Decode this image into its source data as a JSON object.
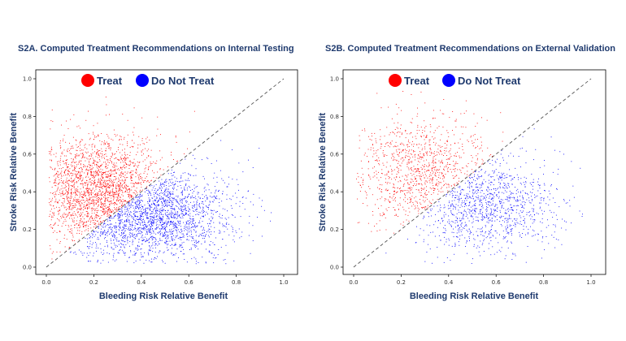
{
  "figure": {
    "panels": [
      {
        "id": "a",
        "title": "S2A. Computed Treatment Recommendations on Internal Testing"
      },
      {
        "id": "b",
        "title": "S2B. Computed Treatment Recommendations on External Validation"
      }
    ]
  },
  "chart_data": [
    {
      "type": "scatter",
      "title": "S2A. Computed Treatment Recommendations on Internal Testing",
      "xlabel": "Bleeding Risk Relative Benefit",
      "ylabel": "Stroke Risk Relative Benefit",
      "xlim": [
        0.0,
        1.0
      ],
      "ylim": [
        0.0,
        1.0
      ],
      "xticks": [
        "0.0",
        "0.2",
        "0.4",
        "0.6",
        "0.8",
        "1.0"
      ],
      "yticks": [
        "0.0",
        "0.2",
        "0.4",
        "0.6",
        "0.8",
        "1.0"
      ],
      "reference_line": {
        "style": "dashed",
        "from": [
          0.0,
          0.0
        ],
        "to": [
          1.0,
          1.0
        ]
      },
      "legend": {
        "placement": "top",
        "entries": [
          {
            "label": "Treat",
            "color": "#ff0000"
          },
          {
            "label": "Do Not Treat",
            "color": "#0000ff"
          }
        ]
      },
      "series": [
        {
          "name": "Treat",
          "color": "#ff0000",
          "rule": "y > x",
          "approx_points": 2000,
          "distribution": {
            "x_center": 0.22,
            "x_spread": 0.14,
            "y_center": 0.4,
            "y_spread": 0.15
          }
        },
        {
          "name": "Do Not Treat",
          "color": "#0000ff",
          "rule": "y <= x",
          "approx_points": 2000,
          "distribution": {
            "x_center": 0.42,
            "x_spread": 0.18,
            "y_center": 0.28,
            "y_spread": 0.13
          }
        }
      ]
    },
    {
      "type": "scatter",
      "title": "S2B. Computed Treatment Recommendations on External Validation",
      "xlabel": "Bleeding Risk Relative Benefit",
      "ylabel": "Stroke Risk Relative Benefit",
      "xlim": [
        0.0,
        1.0
      ],
      "ylim": [
        0.0,
        1.0
      ],
      "xticks": [
        "0.0",
        "0.2",
        "0.4",
        "0.6",
        "0.8",
        "1.0"
      ],
      "yticks": [
        "0.0",
        "0.2",
        "0.4",
        "0.6",
        "0.8",
        "1.0"
      ],
      "reference_line": {
        "style": "dashed",
        "from": [
          0.0,
          0.0
        ],
        "to": [
          1.0,
          1.0
        ]
      },
      "legend": {
        "placement": "top",
        "entries": [
          {
            "label": "Treat",
            "color": "#ff0000"
          },
          {
            "label": "Do Not Treat",
            "color": "#0000ff"
          }
        ]
      },
      "series": [
        {
          "name": "Treat",
          "color": "#ff0000",
          "rule": "y > x",
          "approx_points": 1000,
          "distribution": {
            "x_center": 0.28,
            "x_spread": 0.14,
            "y_center": 0.5,
            "y_spread": 0.15
          }
        },
        {
          "name": "Do Not Treat",
          "color": "#0000ff",
          "rule": "y <= x",
          "approx_points": 1100,
          "distribution": {
            "x_center": 0.55,
            "x_spread": 0.16,
            "y_center": 0.33,
            "y_spread": 0.13
          }
        }
      ]
    }
  ]
}
